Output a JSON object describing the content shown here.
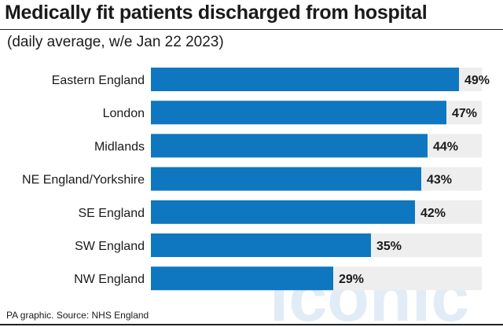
{
  "header": {
    "title": "Medically fit patients discharged from hospital",
    "subtitle": "(daily average, w/e Jan 22 2023)"
  },
  "footer": {
    "source": "PA graphic. Source: NHS England"
  },
  "watermark": {
    "text": "iconic"
  },
  "colors": {
    "bar": "#0f77c0",
    "track": "#eeeeee",
    "text": "#1a1a1a",
    "watermark": "#c9dcef"
  },
  "chart_data": {
    "type": "bar",
    "orientation": "horizontal",
    "title": "Medically fit patients discharged from hospital",
    "subtitle": "(daily average, w/e Jan 22 2023)",
    "unit": "%",
    "xlim": [
      0,
      100
    ],
    "grid": false,
    "categories": [
      "Eastern England",
      "London",
      "Midlands",
      "NE England/Yorkshire",
      "SE England",
      "SW England",
      "NW England"
    ],
    "values": [
      49,
      47,
      44,
      43,
      42,
      35,
      29
    ],
    "labels": [
      "49%",
      "47%",
      "44%",
      "43%",
      "42%",
      "35%",
      "29%"
    ]
  }
}
